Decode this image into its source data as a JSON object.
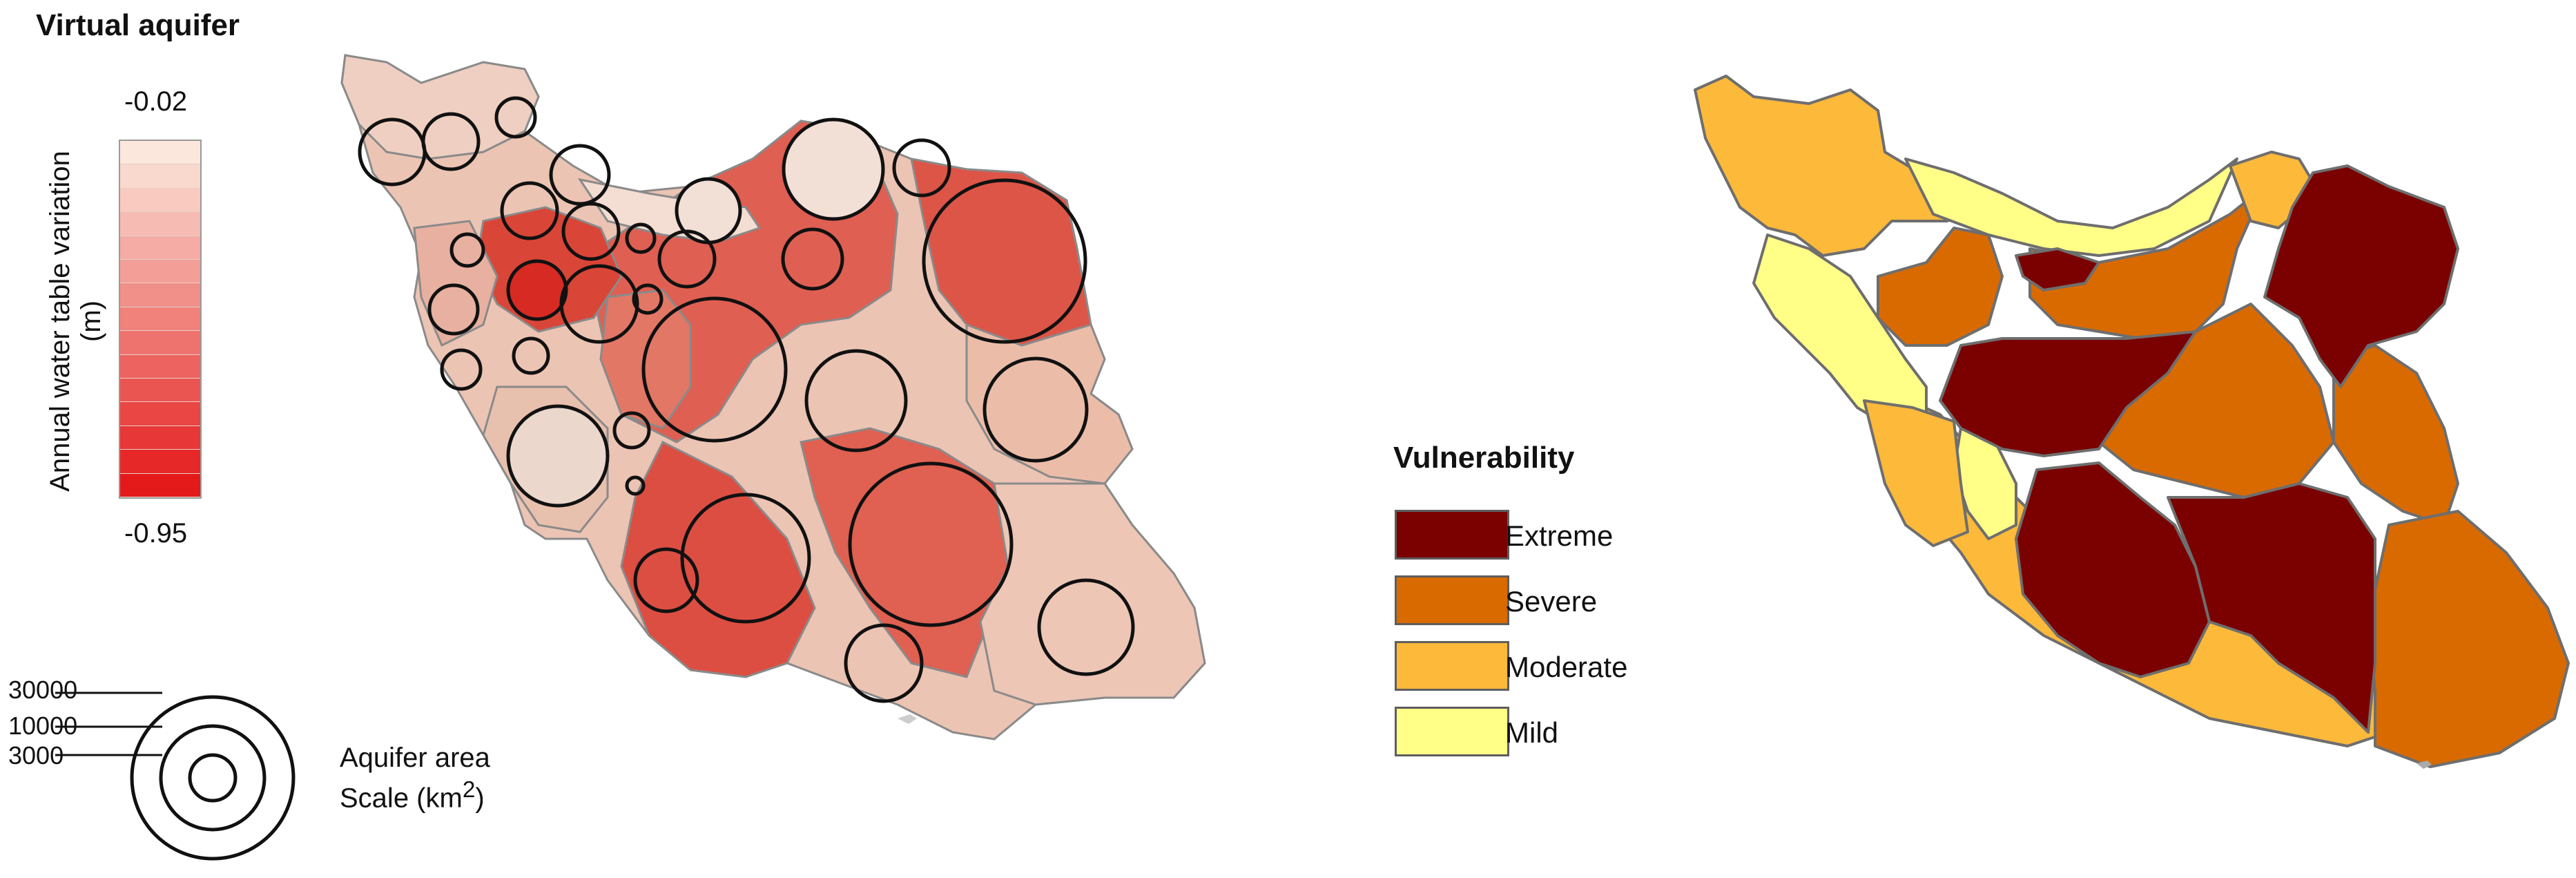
{
  "left_panel": {
    "title": "Virtual aquifer",
    "colorbar": {
      "label": "Annual water table variation (m)",
      "max_label": "-0.02",
      "min_label": "-0.95",
      "max_value": -0.02,
      "min_value": -0.95,
      "steps": 15,
      "color_light": "#fbe7dc",
      "color_dark": "#e41a1a"
    },
    "size_scale": {
      "title_line1": "Aquifer area",
      "title_line2": "Scale (km",
      "title_sup": "2",
      "title_close": ")",
      "labels": [
        "30000",
        "10000",
        "3000"
      ]
    }
  },
  "right_panel": {
    "legend_title": "Vulnerability",
    "legend": [
      {
        "label": "Extreme",
        "color": "#7b0000"
      },
      {
        "label": "Severe",
        "color": "#d96a00"
      },
      {
        "label": "Moderate",
        "color": "#fdb93a"
      },
      {
        "label": "Mild",
        "color": "#ffff88"
      }
    ]
  }
}
